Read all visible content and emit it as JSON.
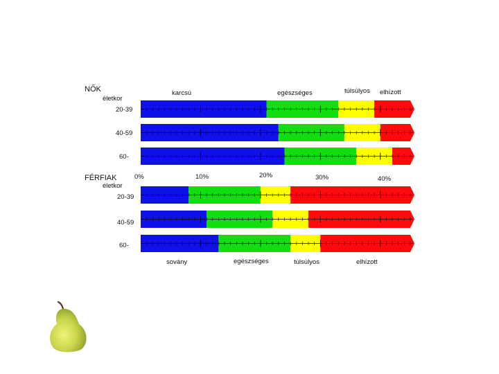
{
  "chart_data": {
    "type": "bar",
    "colors": {
      "blue": "#1010e8",
      "green": "#11dd11",
      "yellow": "#ffff00",
      "red": "#ff0a0a"
    },
    "x_axis": {
      "range": [
        0,
        45
      ],
      "ticks": [
        0,
        10,
        20,
        30,
        40
      ],
      "tick_labels": [
        "0%",
        "10%",
        "20%",
        "30%",
        "40%"
      ]
    },
    "groups": [
      {
        "key": "women",
        "title": "NŐK",
        "subtitle": "életkor",
        "zone_labels": [
          "karcsú",
          "egészséges",
          "túlsúlyos",
          "elhízott"
        ],
        "rows": [
          {
            "age": "20-39",
            "thresholds": [
              21,
              33,
              39,
              45
            ]
          },
          {
            "age": "40-59",
            "thresholds": [
              23,
              34,
              40,
              45
            ]
          },
          {
            "age": "60-",
            "thresholds": [
              24,
              36,
              42,
              45
            ]
          }
        ]
      },
      {
        "key": "men",
        "title": "FÉRFIAK",
        "subtitle": "életkor",
        "zone_labels": [
          "sovány",
          "egészséges",
          "túlsúlyos",
          "elhízott"
        ],
        "rows": [
          {
            "age": "20-39",
            "thresholds": [
              8,
              20,
              25,
              45
            ]
          },
          {
            "age": "40-59",
            "thresholds": [
              11,
              22,
              28,
              45
            ]
          },
          {
            "age": "60-",
            "thresholds": [
              13,
              25,
              30,
              45
            ]
          }
        ]
      }
    ]
  },
  "decor": {
    "image": "pear-icon"
  }
}
